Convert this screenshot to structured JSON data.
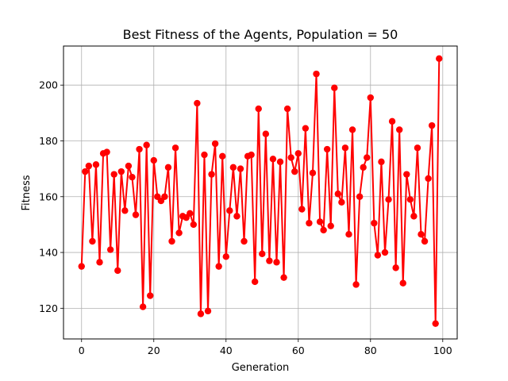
{
  "chart_data": {
    "type": "line",
    "title": "Best Fitness of the Agents, Population = 50",
    "xlabel": "Generation",
    "ylabel": "Fitness",
    "xlim": [
      -5,
      104
    ],
    "ylim": [
      109,
      214
    ],
    "xticks": [
      0,
      20,
      40,
      60,
      80,
      100
    ],
    "yticks": [
      120,
      140,
      160,
      180,
      200
    ],
    "xtick_labels": [
      "0",
      "20",
      "40",
      "60",
      "80",
      "100"
    ],
    "ytick_labels": [
      "120",
      "140",
      "160",
      "180",
      "200"
    ],
    "grid": true,
    "legend": "none",
    "series": [
      {
        "color": "#ff0000",
        "marker": "circle",
        "x": [
          0,
          1,
          2,
          3,
          4,
          5,
          6,
          7,
          8,
          9,
          10,
          11,
          12,
          13,
          14,
          15,
          16,
          17,
          18,
          19,
          20,
          21,
          22,
          23,
          24,
          25,
          26,
          27,
          28,
          29,
          30,
          31,
          32,
          33,
          34,
          35,
          36,
          37,
          38,
          39,
          40,
          41,
          42,
          43,
          44,
          45,
          46,
          47,
          48,
          49,
          50,
          51,
          52,
          53,
          54,
          55,
          56,
          57,
          58,
          59,
          60,
          61,
          62,
          63,
          64,
          65,
          66,
          67,
          68,
          69,
          70,
          71,
          72,
          73,
          74,
          75,
          76,
          77,
          78,
          79,
          80,
          81,
          82,
          83,
          84,
          85,
          86,
          87,
          88,
          89,
          90,
          91,
          92,
          93,
          94,
          95,
          96,
          97,
          98,
          99
        ],
        "y": [
          135,
          169,
          171,
          144,
          171.5,
          136.5,
          175.5,
          176,
          141,
          168,
          133.5,
          169,
          155,
          171,
          167,
          153.5,
          177,
          120.5,
          178.5,
          124.5,
          173,
          160,
          158.5,
          160,
          170.5,
          144,
          177.5,
          147,
          153,
          152.5,
          154,
          150,
          193.5,
          118,
          175,
          119,
          168,
          179,
          135,
          174.5,
          138.5,
          155,
          170.5,
          153,
          170,
          144,
          174.5,
          175,
          129.5,
          191.5,
          139.5,
          182.5,
          137,
          173.5,
          136.5,
          172.5,
          131,
          191.5,
          174,
          169,
          175.5,
          155.5,
          184.5,
          150.5,
          168.5,
          204,
          151,
          148,
          177,
          149.5,
          199,
          161,
          158,
          177.5,
          146.5,
          184,
          128.5,
          160,
          170.5,
          174,
          195.5,
          150.5,
          139,
          172.5,
          140,
          159,
          187,
          134.5,
          184,
          129,
          168,
          159,
          153,
          177.5,
          146.5,
          144,
          166.5,
          185.5,
          114.5,
          209.5
        ]
      }
    ]
  }
}
